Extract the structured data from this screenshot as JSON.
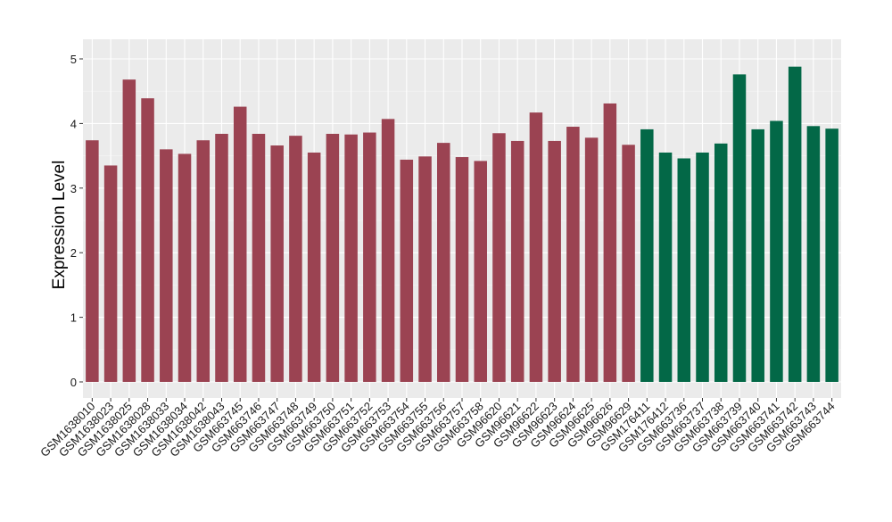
{
  "chart_data": {
    "type": "bar",
    "title": "",
    "xlabel": "",
    "ylabel": "Expression Level",
    "ylim": [
      0,
      5.25
    ],
    "yticks": [
      0,
      1,
      2,
      3,
      4,
      5
    ],
    "ytick_labels": [
      "0",
      "1",
      "2",
      "3",
      "4",
      "5"
    ],
    "grid": true,
    "legend": "none",
    "colors": {
      "group1": "#9b4352",
      "group2": "#036847",
      "panel": "#ebebeb",
      "grid": "#ffffff"
    },
    "categories": [
      "GSM1638010",
      "GSM1638023",
      "GSM1638025",
      "GSM1638028",
      "GSM1638033",
      "GSM1638034",
      "GSM1638042",
      "GSM1638043",
      "GSM663745",
      "GSM663746",
      "GSM663747",
      "GSM663748",
      "GSM663749",
      "GSM663750",
      "GSM663751",
      "GSM663752",
      "GSM663753",
      "GSM663754",
      "GSM663755",
      "GSM663756",
      "GSM663757",
      "GSM663758",
      "GSM96620",
      "GSM96621",
      "GSM96622",
      "GSM96623",
      "GSM96624",
      "GSM96625",
      "GSM96626",
      "GSM96629",
      "GSM176411",
      "GSM176412",
      "GSM663736",
      "GSM663737",
      "GSM663738",
      "GSM663739",
      "GSM663740",
      "GSM663741",
      "GSM663742",
      "GSM663743",
      "GSM663744"
    ],
    "values": [
      3.74,
      3.35,
      4.68,
      4.39,
      3.6,
      3.53,
      3.74,
      3.84,
      4.26,
      3.84,
      3.66,
      3.81,
      3.55,
      3.84,
      3.83,
      3.86,
      4.07,
      3.44,
      3.49,
      3.7,
      3.48,
      3.42,
      3.85,
      3.73,
      4.17,
      3.73,
      3.95,
      3.78,
      4.31,
      3.67,
      3.91,
      3.55,
      3.46,
      3.55,
      3.69,
      4.76,
      3.91,
      4.04,
      4.88,
      3.96,
      3.92
    ],
    "groups": [
      1,
      1,
      1,
      1,
      1,
      1,
      1,
      1,
      1,
      1,
      1,
      1,
      1,
      1,
      1,
      1,
      1,
      1,
      1,
      1,
      1,
      1,
      1,
      1,
      1,
      1,
      1,
      1,
      1,
      1,
      2,
      2,
      2,
      2,
      2,
      2,
      2,
      2,
      2,
      2,
      2
    ]
  }
}
